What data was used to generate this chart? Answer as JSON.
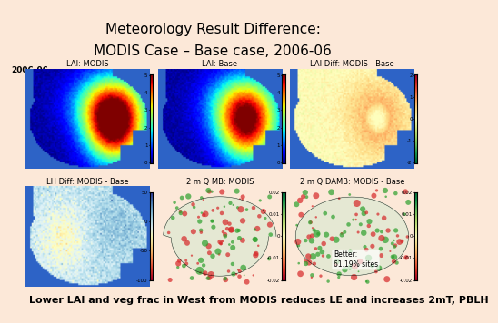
{
  "title_line1": "Meteorology Result Difference:",
  "title_line2": "MODIS Case – Base case, 2006-06",
  "footer": "Lower LAI and veg frac in West from MODIS reduces LE and increases 2mT, PBLH",
  "background_color": "#fce8d8",
  "title_fontsize": 11,
  "footer_fontsize": 8,
  "label_fontsize": 7.5,
  "year_label": "2006-06",
  "panel_labels": [
    "LAI: MODIS",
    "LAI: Base",
    "LAI Diff: MODIS - Base",
    "LH Diff: MODIS - Base",
    "2 m Q MB: MODIS",
    "2 m Q DAMB: MODIS - Base"
  ],
  "colorbar_ticks_row1_left": [
    "5",
    "4",
    "3",
    "2",
    "1",
    "0"
  ],
  "colorbar_ticks_row1_right": [
    "2",
    "1",
    "0",
    "-1",
    "-2"
  ],
  "colorbar_ticks_row2_left": [
    "50",
    "0",
    "-50",
    "-100"
  ],
  "annotation_text": "Better:\n61.19% sites",
  "colorbar_ticks_row2_right": [
    "0.02",
    "0.01",
    "0",
    "-0.01",
    "-0.02"
  ]
}
